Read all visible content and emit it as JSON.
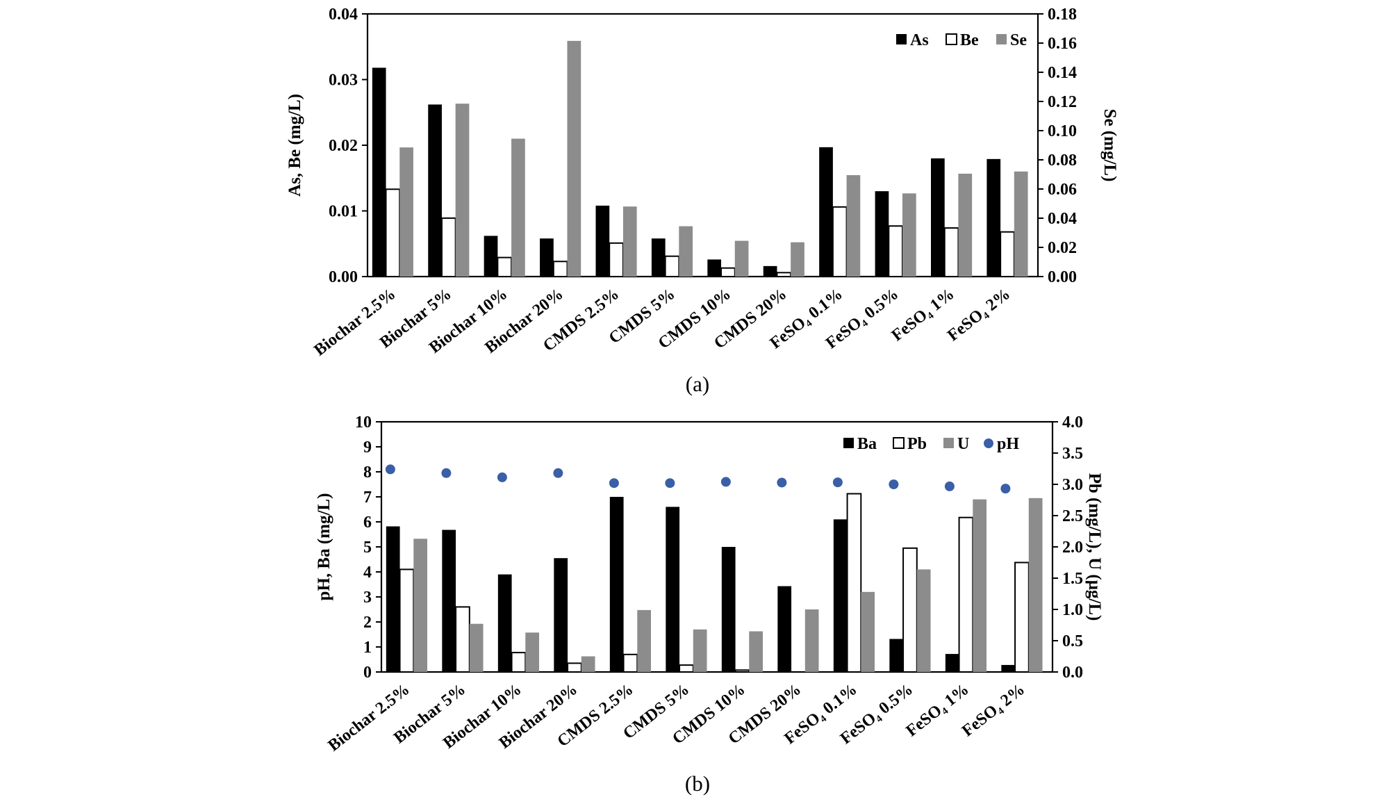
{
  "chart_data": [
    {
      "type": "bar",
      "caption": "(a)",
      "categories": [
        "Biochar 2.5%",
        "Biochar 5%",
        "Biochar 10%",
        "Biochar 20%",
        "CMDS 2.5%",
        "CMDS 5%",
        "CMDS 10%",
        "CMDS 20%",
        "FeSO₄ 0.1%",
        "FeSO₄ 0.5%",
        "FeSO₄ 1%",
        "FeSO₄ 2%"
      ],
      "ylabel_left": "As, Be (mg/L)",
      "ylabel_right": "Se (mg/L)",
      "ylim_left": [
        0,
        0.04
      ],
      "ylim_right": [
        0,
        0.18
      ],
      "yticks_left": [
        "0.00",
        "0.01",
        "0.02",
        "0.03",
        "0.04"
      ],
      "yticks_right": [
        "0.00",
        "0.02",
        "0.04",
        "0.06",
        "0.08",
        "0.10",
        "0.12",
        "0.14",
        "0.16",
        "0.18"
      ],
      "legend_position": "top-right",
      "series": [
        {
          "name": "As",
          "axis": "left",
          "style": "solid-black",
          "color": "#000000",
          "values": [
            0.0318,
            0.0262,
            0.0062,
            0.0058,
            0.0108,
            0.0058,
            0.0026,
            0.0016,
            0.0197,
            0.013,
            0.018,
            0.0179
          ]
        },
        {
          "name": "Be",
          "axis": "left",
          "style": "hollow",
          "color": "#ffffff",
          "values": [
            0.0133,
            0.0089,
            0.0029,
            0.0023,
            0.0051,
            0.0031,
            0.0013,
            0.0006,
            0.0106,
            0.0077,
            0.0074,
            0.0068
          ]
        },
        {
          "name": "Se",
          "axis": "right",
          "style": "solid-gray",
          "color": "#8c8c8c",
          "values": [
            0.0885,
            0.1185,
            0.0945,
            0.1615,
            0.048,
            0.0345,
            0.0245,
            0.0235,
            0.0695,
            0.057,
            0.0705,
            0.072
          ]
        }
      ]
    },
    {
      "type": "bar+scatter",
      "caption": "(b)",
      "categories": [
        "Biochar 2.5%",
        "Biochar 5%",
        "Biochar 10%",
        "Biochar 20%",
        "CMDS 2.5%",
        "CMDS 5%",
        "CMDS 10%",
        "CMDS 20%",
        "FeSO₄ 0.1%",
        "FeSO₄ 0.5%",
        "FeSO₄ 1%",
        "FeSO₄ 2%"
      ],
      "ylabel_left": "pH, Ba (mg/L)",
      "ylabel_right": "Pb (mg/L), U (μg/L)",
      "ylim_left": [
        0,
        10
      ],
      "ylim_right": [
        0,
        4.0
      ],
      "yticks_left": [
        "0",
        "1",
        "2",
        "3",
        "4",
        "5",
        "6",
        "7",
        "8",
        "9",
        "10"
      ],
      "yticks_right": [
        "0.0",
        "0.5",
        "1.0",
        "1.5",
        "2.0",
        "2.5",
        "3.0",
        "3.5",
        "4.0"
      ],
      "legend_position": "top-right",
      "series": [
        {
          "name": "Ba",
          "axis": "left",
          "style": "solid-black",
          "color": "#000000",
          "values": [
            5.82,
            5.68,
            3.9,
            4.55,
            7.0,
            6.6,
            5.0,
            3.43,
            6.1,
            1.32,
            0.72,
            0.28
          ]
        },
        {
          "name": "Pb",
          "axis": "right",
          "style": "hollow",
          "color": "#ffffff",
          "values": [
            1.64,
            1.04,
            0.31,
            0.14,
            0.28,
            0.11,
            0.03,
            0.0,
            2.85,
            1.98,
            2.47,
            1.75
          ]
        },
        {
          "name": "U",
          "axis": "right",
          "style": "solid-gray",
          "color": "#8c8c8c",
          "values": [
            2.13,
            0.77,
            0.63,
            0.25,
            0.99,
            0.68,
            0.65,
            1.0,
            1.28,
            1.64,
            2.76,
            2.78
          ]
        },
        {
          "name": "pH",
          "axis": "left",
          "style": "dot",
          "color": "#3a5fa8",
          "values": [
            8.1,
            7.95,
            7.78,
            7.95,
            7.55,
            7.55,
            7.6,
            7.57,
            7.58,
            7.5,
            7.42,
            7.33
          ]
        }
      ]
    }
  ]
}
